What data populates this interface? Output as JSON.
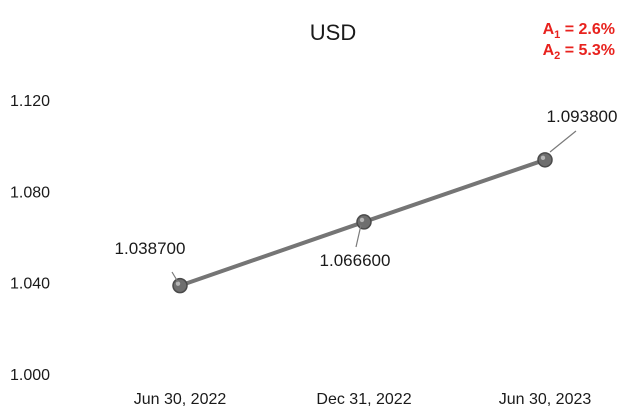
{
  "chart_data": {
    "type": "line",
    "title": "USD",
    "annotations": [
      {
        "label": "A",
        "sub": "1",
        "text": " = 2.6%"
      },
      {
        "label": "A",
        "sub": "2",
        "text": " = 5.3%"
      }
    ],
    "annotation_color": "#e8221e",
    "categories": [
      "Jun 30, 2022",
      "Dec 31, 2022",
      "Jun 30, 2023"
    ],
    "series": [
      {
        "values": [
          1.0387,
          1.0666,
          1.0938
        ],
        "color": "#757575"
      }
    ],
    "data_labels": [
      "1.038700",
      "1.066600",
      "1.093800"
    ],
    "ylim": [
      1.0,
      1.12
    ],
    "yticks": [
      1.0,
      1.04,
      1.08,
      1.12
    ],
    "ytick_labels": [
      "1.000",
      "1.040",
      "1.080",
      "1.120"
    ],
    "grid": false,
    "xlabel": "",
    "ylabel": ""
  }
}
